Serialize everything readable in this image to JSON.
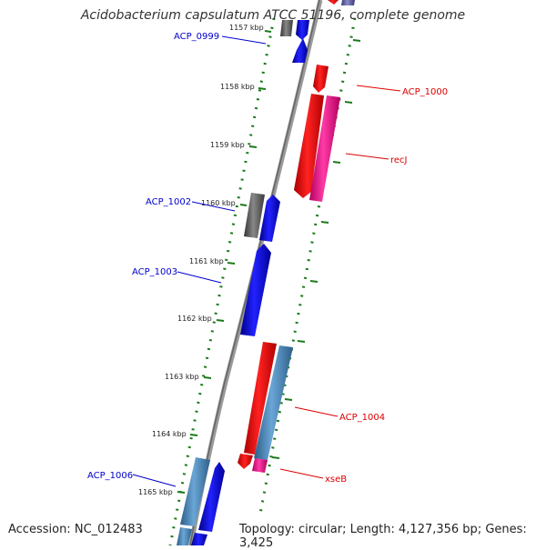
{
  "title": "Acidobacterium capsulatum ATCC 51196, complete genome",
  "footer": {
    "accession_label": "Accession:",
    "accession": "NC_012483",
    "topology_label": "Topology:",
    "topology": "circular;",
    "length_label": "Length:",
    "length": "4,127,356 bp;",
    "genes_label": "Genes:",
    "genes": "3,425"
  },
  "colors": {
    "forward_label": "#0000cc",
    "reverse_label": "#dd0000",
    "cds_blue": "#0000ee",
    "cds_red": "#ff0000",
    "cds_steelblue": "#4682b4",
    "cds_pink": "#ff1493",
    "cds_gray": "#555555",
    "cds_slate": "#6a6aa8",
    "ticks": "#1a7a1a",
    "backbone": "#888888"
  },
  "kbp_ticks": [
    "1157 kbp",
    "1158 kbp",
    "1159 kbp",
    "1160 kbp",
    "1161 kbp",
    "1162 kbp",
    "1163 kbp",
    "1164 kbp",
    "1165 kbp"
  ],
  "gene_labels": [
    {
      "text": "ACP_0999",
      "side": "left"
    },
    {
      "text": "ACP_1000",
      "side": "right"
    },
    {
      "text": "recJ",
      "side": "right"
    },
    {
      "text": "ACP_1002",
      "side": "left"
    },
    {
      "text": "ACP_1003",
      "side": "left"
    },
    {
      "text": "ACP_1004",
      "side": "right"
    },
    {
      "text": "xseB",
      "side": "right"
    },
    {
      "text": "ACP_1006",
      "side": "left"
    }
  ]
}
